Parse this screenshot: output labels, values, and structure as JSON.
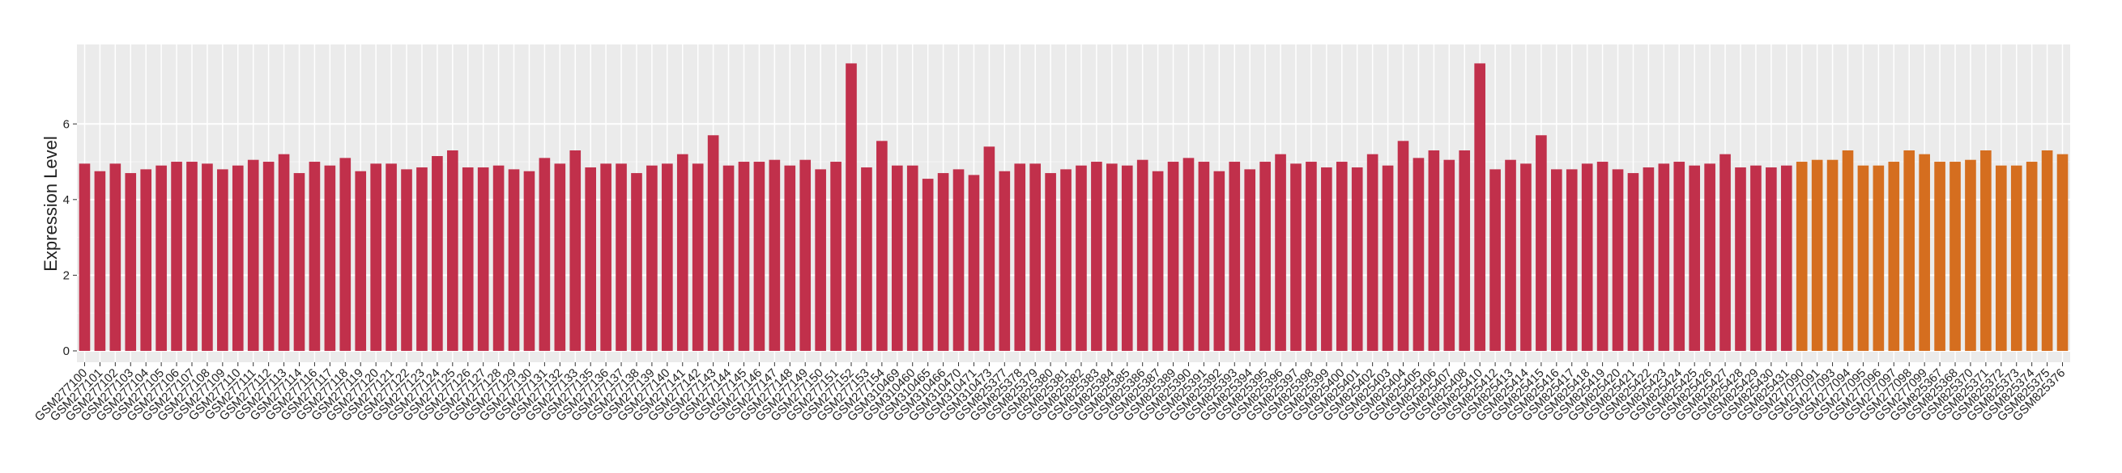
{
  "chart_data": {
    "type": "bar",
    "y_label": "Expression Level",
    "categories": [
      "GSM277100",
      "GSM277101",
      "GSM277102",
      "GSM277103",
      "GSM277104",
      "GSM277105",
      "GSM277106",
      "GSM277107",
      "GSM277108",
      "GSM277109",
      "GSM277110",
      "GSM277111",
      "GSM277112",
      "GSM277113",
      "GSM277114",
      "GSM277116",
      "GSM277117",
      "GSM277118",
      "GSM277119",
      "GSM277120",
      "GSM277121",
      "GSM277122",
      "GSM277123",
      "GSM277124",
      "GSM277125",
      "GSM277126",
      "GSM277127",
      "GSM277128",
      "GSM277129",
      "GSM277130",
      "GSM277131",
      "GSM277132",
      "GSM277133",
      "GSM277135",
      "GSM277136",
      "GSM277137",
      "GSM277138",
      "GSM277139",
      "GSM277140",
      "GSM277141",
      "GSM277142",
      "GSM277143",
      "GSM277144",
      "GSM277145",
      "GSM277146",
      "GSM277147",
      "GSM277148",
      "GSM277149",
      "GSM277150",
      "GSM277151",
      "GSM277152",
      "GSM277153",
      "GSM277154",
      "GSM310469",
      "GSM310460",
      "GSM310465",
      "GSM310466",
      "GSM310470",
      "GSM310471",
      "GSM310473",
      "GSM825377",
      "GSM825378",
      "GSM825379",
      "GSM825380",
      "GSM825381",
      "GSM825382",
      "GSM825383",
      "GSM825384",
      "GSM825385",
      "GSM825386",
      "GSM825387",
      "GSM825389",
      "GSM825390",
      "GSM825391",
      "GSM825392",
      "GSM825393",
      "GSM825394",
      "GSM825395",
      "GSM825396",
      "GSM825397",
      "GSM825398",
      "GSM825399",
      "GSM825400",
      "GSM825401",
      "GSM825402",
      "GSM825403",
      "GSM825404",
      "GSM825405",
      "GSM825406",
      "GSM825407",
      "GSM825408",
      "GSM825410",
      "GSM825412",
      "GSM825413",
      "GSM825414",
      "GSM825415",
      "GSM825416",
      "GSM825417",
      "GSM825418",
      "GSM825419",
      "GSM825420",
      "GSM825421",
      "GSM825422",
      "GSM825423",
      "GSM825424",
      "GSM825425",
      "GSM825426",
      "GSM825427",
      "GSM825428",
      "GSM825429",
      "GSM825430",
      "GSM825431",
      "GSM277090",
      "GSM277091",
      "GSM277093",
      "GSM277094",
      "GSM277095",
      "GSM277096",
      "GSM277097",
      "GSM277098",
      "GSM277099",
      "GSM825367",
      "GSM825368",
      "GSM825370",
      "GSM825371",
      "GSM825372",
      "GSM825373",
      "GSM825374",
      "GSM825375",
      "GSM825376"
    ],
    "values": [
      4.95,
      4.75,
      4.95,
      4.7,
      4.8,
      4.9,
      5.0,
      5.0,
      4.95,
      4.8,
      4.9,
      5.05,
      5.0,
      5.2,
      4.7,
      5.0,
      4.9,
      5.1,
      4.75,
      4.95,
      4.95,
      4.8,
      4.85,
      5.15,
      5.3,
      4.85,
      4.85,
      4.9,
      4.8,
      4.75,
      5.1,
      4.95,
      5.3,
      4.85,
      4.95,
      4.95,
      4.7,
      4.9,
      4.95,
      5.2,
      4.95,
      5.7,
      4.9,
      5.0,
      5.0,
      5.05,
      4.9,
      5.05,
      4.8,
      5.0,
      7.6,
      4.85,
      5.55,
      4.9,
      4.9,
      4.55,
      4.7,
      4.8,
      4.65,
      5.4,
      4.75,
      4.95,
      4.95,
      4.7,
      4.8,
      4.9,
      5.0,
      4.95,
      4.9,
      5.05,
      4.75,
      5.0,
      5.1,
      5.0,
      4.75,
      5.0,
      4.8,
      5.0,
      5.2,
      4.95,
      5.0,
      4.85,
      5.0,
      4.85,
      5.2,
      4.9,
      5.55,
      5.1,
      5.3,
      5.05,
      5.3,
      7.6,
      4.8,
      5.05,
      4.95,
      5.7,
      4.8,
      4.8,
      4.95,
      5.0,
      4.8,
      4.7,
      4.85,
      4.95,
      5.0,
      4.9,
      4.95,
      5.2,
      4.85,
      4.9,
      4.85,
      4.9,
      5.0,
      5.05,
      5.05,
      5.3,
      4.9,
      4.9,
      5.0,
      5.3,
      5.2,
      5.0,
      5.0,
      5.05,
      5.3,
      4.9,
      4.9,
      5.0,
      5.3,
      5.2
    ],
    "group_colors": [
      "#c1304b",
      "#d56e1f"
    ],
    "group_sizes": [
      112,
      18
    ],
    "ylim": [
      -0.3,
      8.1
    ],
    "yticks": [
      0,
      2,
      4,
      6
    ],
    "grid": true
  }
}
